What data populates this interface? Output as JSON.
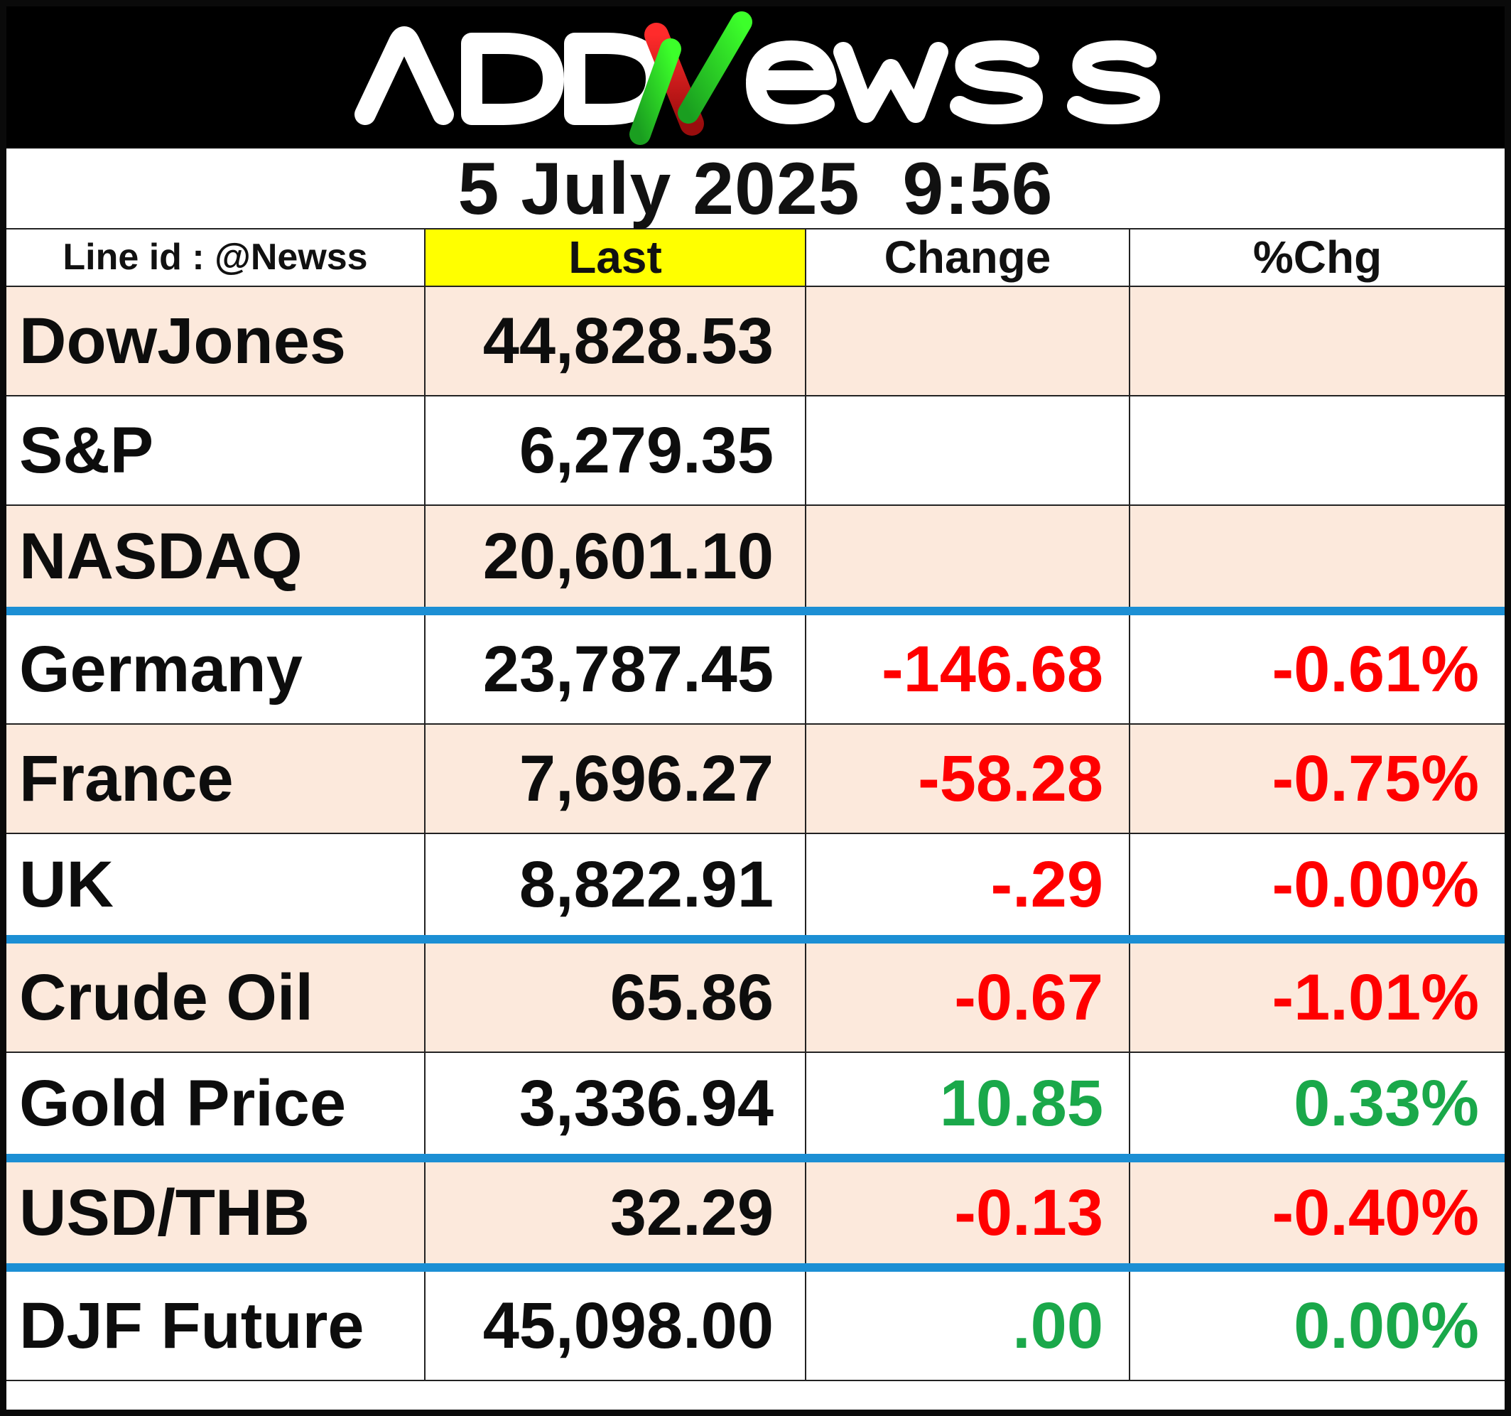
{
  "brand": {
    "logo_text": "ADDNewss",
    "colors": {
      "header_bg": "#000000",
      "logo_white": "#ffffff",
      "logo_red": "#e01b1b",
      "logo_green": "#22c31b"
    }
  },
  "date_line": "5 July 2025  9:56",
  "columns": {
    "name": "Line id : @Newss",
    "last": "Last",
    "change": "Change",
    "pct": "%Chg"
  },
  "colors": {
    "negative": "#ff0000",
    "positive": "#1aa84a",
    "row_shade": "#fce9dc",
    "last_header": "#ffff00",
    "separator": "#1c8fd4"
  },
  "rows": [
    {
      "name": "DowJones",
      "last": "44,828.53",
      "change": "",
      "pct": "",
      "trend": "none"
    },
    {
      "name": "S&P",
      "last": "6,279.35",
      "change": "",
      "pct": "",
      "trend": "none"
    },
    {
      "name": "NASDAQ",
      "last": "20,601.10",
      "change": "",
      "pct": "",
      "trend": "none"
    },
    {
      "name": "Germany",
      "last": "23,787.45",
      "change": "-146.68",
      "pct": "-0.61%",
      "trend": "down"
    },
    {
      "name": "France",
      "last": "7,696.27",
      "change": "-58.28",
      "pct": "-0.75%",
      "trend": "down"
    },
    {
      "name": "UK",
      "last": "8,822.91",
      "change": "-.29",
      "pct": "-0.00%",
      "trend": "down"
    },
    {
      "name": "Crude Oil",
      "last": "65.86",
      "change": "-0.67",
      "pct": "-1.01%",
      "trend": "down"
    },
    {
      "name": "Gold Price",
      "last": "3,336.94",
      "change": "10.85",
      "pct": "0.33%",
      "trend": "up"
    },
    {
      "name": "USD/THB",
      "last": "32.29",
      "change": "-0.13",
      "pct": "-0.40%",
      "trend": "down"
    },
    {
      "name": "DJF Future",
      "last": "45,098.00",
      "change": ".00",
      "pct": "0.00%",
      "trend": "up"
    }
  ]
}
